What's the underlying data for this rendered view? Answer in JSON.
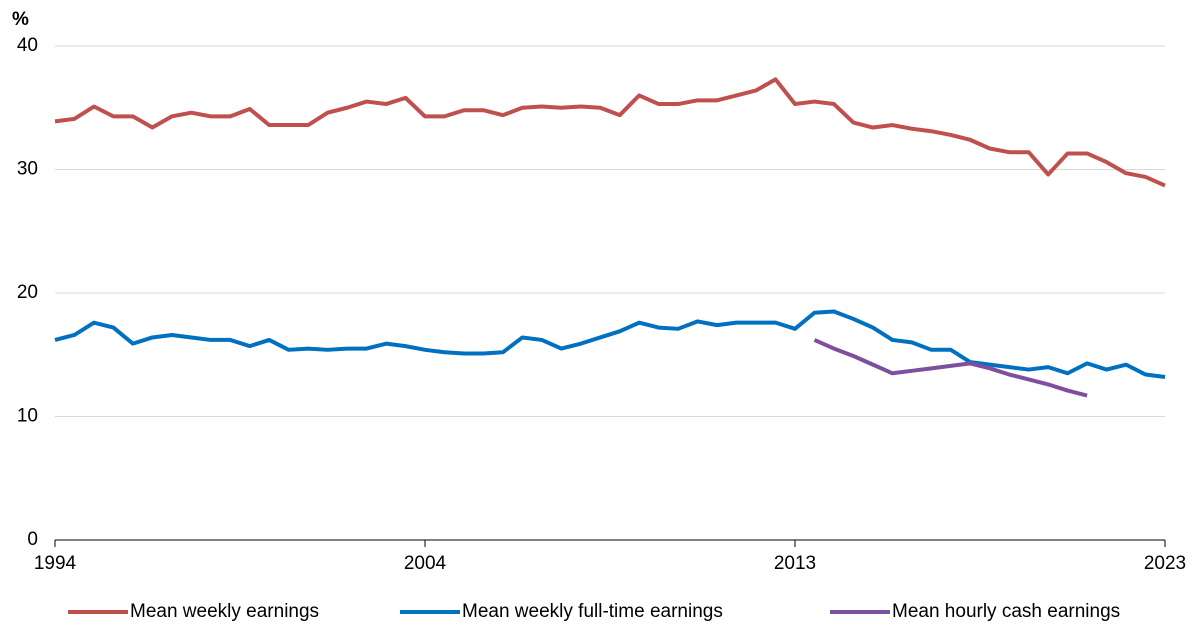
{
  "chart_data": {
    "type": "line",
    "y_unit": "%",
    "categories": [
      "1994",
      null,
      null,
      null,
      null,
      null,
      null,
      null,
      null,
      null,
      null,
      null,
      null,
      null,
      null,
      null,
      null,
      null,
      null,
      "2004",
      null,
      null,
      null,
      null,
      null,
      null,
      null,
      null,
      null,
      null,
      null,
      null,
      null,
      null,
      null,
      null,
      null,
      null,
      "2013",
      null,
      null,
      null,
      null,
      null,
      null,
      null,
      null,
      null,
      null,
      null,
      null,
      null,
      null,
      null,
      null,
      null,
      null,
      "2023"
    ],
    "series": [
      {
        "name": "Mean weekly earnings",
        "color": "#c0504d",
        "values": [
          33.9,
          34.1,
          35.1,
          34.3,
          34.3,
          33.4,
          34.3,
          34.6,
          34.3,
          34.3,
          34.9,
          33.6,
          33.6,
          33.6,
          34.6,
          35.0,
          35.5,
          35.3,
          35.8,
          34.3,
          34.3,
          34.8,
          34.8,
          34.4,
          35.0,
          35.1,
          35.0,
          35.1,
          35.0,
          34.4,
          36.0,
          35.3,
          35.3,
          35.6,
          35.6,
          36.0,
          36.4,
          37.3,
          35.3,
          35.5,
          35.3,
          33.8,
          33.4,
          33.6,
          33.3,
          33.1,
          32.8,
          32.4,
          31.7,
          31.4,
          31.4,
          29.6,
          31.3,
          31.3,
          30.6,
          29.7,
          29.4,
          28.7
        ]
      },
      {
        "name": "Mean weekly full-time earnings",
        "color": "#0070c0",
        "values": [
          16.2,
          16.6,
          17.6,
          17.2,
          15.9,
          16.4,
          16.6,
          16.4,
          16.2,
          16.2,
          15.7,
          16.2,
          15.4,
          15.5,
          15.4,
          15.5,
          15.5,
          15.9,
          15.7,
          15.4,
          15.2,
          15.1,
          15.1,
          15.2,
          16.4,
          16.2,
          15.5,
          15.9,
          16.4,
          16.9,
          17.6,
          17.2,
          17.1,
          17.7,
          17.4,
          17.6,
          17.6,
          17.6,
          17.1,
          18.4,
          18.5,
          17.9,
          17.2,
          16.2,
          16.0,
          15.4,
          15.4,
          14.4,
          14.2,
          14.0,
          13.8,
          14.0,
          13.5,
          14.3,
          13.8,
          14.2,
          13.4,
          13.2
        ]
      },
      {
        "name": "Mean hourly cash earnings",
        "color": "#7f4f9f",
        "values": [
          null,
          null,
          null,
          null,
          null,
          null,
          null,
          null,
          null,
          null,
          null,
          null,
          null,
          null,
          null,
          null,
          null,
          null,
          null,
          null,
          null,
          null,
          null,
          null,
          null,
          null,
          null,
          null,
          null,
          null,
          null,
          null,
          null,
          null,
          null,
          null,
          null,
          null,
          null,
          16.2,
          15.5,
          14.9,
          14.2,
          13.5,
          13.7,
          13.9,
          14.1,
          14.3,
          13.9,
          13.4,
          13.0,
          12.6,
          12.1,
          11.7,
          null,
          null,
          null,
          null
        ]
      }
    ],
    "ylim": [
      0,
      40
    ],
    "yticks": [
      0,
      10,
      20,
      30,
      40
    ],
    "grid": true,
    "legend": "bottom"
  }
}
